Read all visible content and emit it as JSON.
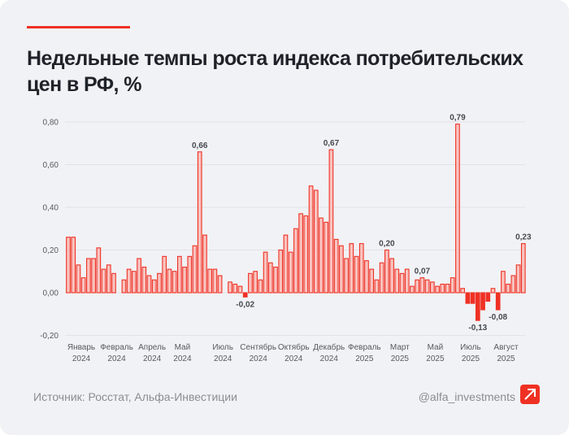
{
  "header": {
    "title": "Недельные темпы роста индекса потребительских цен в РФ, %"
  },
  "footer": {
    "source": "Источник: Росстат, Альфа-Инвестиции",
    "handle": "@alfa_investments",
    "logo_icon": "alfa-arrow-logo"
  },
  "colors": {
    "accent": "#ef3124",
    "bar_fill_positive": "#f9c3bf",
    "bar_stroke": "#ef3124",
    "bar_fill_negative": "#ef3124",
    "background": "#f1f2f5",
    "gridline": "#e2e3e7"
  },
  "chart_data": {
    "type": "bar",
    "title": "Недельные темпы роста индекса потребительских цен в РФ, %",
    "xlabel": "",
    "ylabel": "",
    "ylim": [
      -0.2,
      0.8
    ],
    "yticks": [
      "-0,20",
      "0,00",
      "0,20",
      "0,40",
      "0,60",
      "0,80"
    ],
    "ytick_values": [
      -0.2,
      0,
      0.2,
      0.4,
      0.6,
      0.8
    ],
    "grid": true,
    "legend": "none",
    "x_tick_labels": [
      {
        "line1": "Январь",
        "line2": "2024",
        "index": 0
      },
      {
        "line1": "Февраль",
        "line2": "2024",
        "index": 7
      },
      {
        "line1": "Апрель",
        "line2": "2024",
        "index": 14
      },
      {
        "line1": "Май",
        "line2": "2024",
        "index": 20
      },
      {
        "line1": "Июль",
        "line2": "2024",
        "index": 28
      },
      {
        "line1": "Сентябрь",
        "line2": "2024",
        "index": 35
      },
      {
        "line1": "Октябрь",
        "line2": "2024",
        "index": 42
      },
      {
        "line1": "Декабрь",
        "line2": "2024",
        "index": 49
      },
      {
        "line1": "Февраль",
        "line2": "2025",
        "index": 56
      },
      {
        "line1": "Март",
        "line2": "2025",
        "index": 63
      },
      {
        "line1": "Май",
        "line2": "2025",
        "index": 70
      },
      {
        "line1": "Июль",
        "line2": "2025",
        "index": 77
      },
      {
        "line1": "Август",
        "line2": "2025",
        "index": 84
      }
    ],
    "values": [
      0.26,
      0.26,
      0.13,
      0.07,
      0.16,
      0.16,
      0.21,
      0.11,
      0.13,
      0.09,
      null,
      0.06,
      0.11,
      0.1,
      0.16,
      0.12,
      0.08,
      0.06,
      0.09,
      0.17,
      0.11,
      0.1,
      0.17,
      0.12,
      0.17,
      0.22,
      0.66,
      0.27,
      0.11,
      0.11,
      0.08,
      null,
      0.05,
      0.04,
      0.03,
      -0.02,
      0.09,
      0.1,
      0.06,
      0.19,
      0.14,
      0.12,
      0.2,
      0.27,
      0.19,
      0.3,
      0.37,
      0.36,
      0.5,
      0.48,
      0.35,
      0.33,
      0.67,
      0.25,
      0.22,
      0.16,
      0.23,
      0.17,
      0.23,
      0.15,
      0.11,
      0.06,
      0.14,
      0.2,
      0.16,
      0.11,
      0.09,
      0.11,
      0.03,
      0.06,
      0.07,
      0.06,
      0.05,
      0.03,
      0.04,
      0.04,
      0.07,
      0.79,
      0.02,
      -0.05,
      -0.05,
      -0.13,
      -0.08,
      -0.04,
      0.02,
      -0.08,
      0.1,
      0.04,
      0.08,
      0.13,
      0.23
    ],
    "annotations": [
      {
        "index": 26,
        "text": "0,66"
      },
      {
        "index": 35,
        "text": "-0,02"
      },
      {
        "index": 52,
        "text": "0,67"
      },
      {
        "index": 63,
        "text": "0,20"
      },
      {
        "index": 70,
        "text": "0,07"
      },
      {
        "index": 77,
        "text": "0,79"
      },
      {
        "index": 81,
        "text": "-0,13"
      },
      {
        "index": 85,
        "text": "-0,08"
      },
      {
        "index": 90,
        "text": "0,23"
      }
    ]
  }
}
